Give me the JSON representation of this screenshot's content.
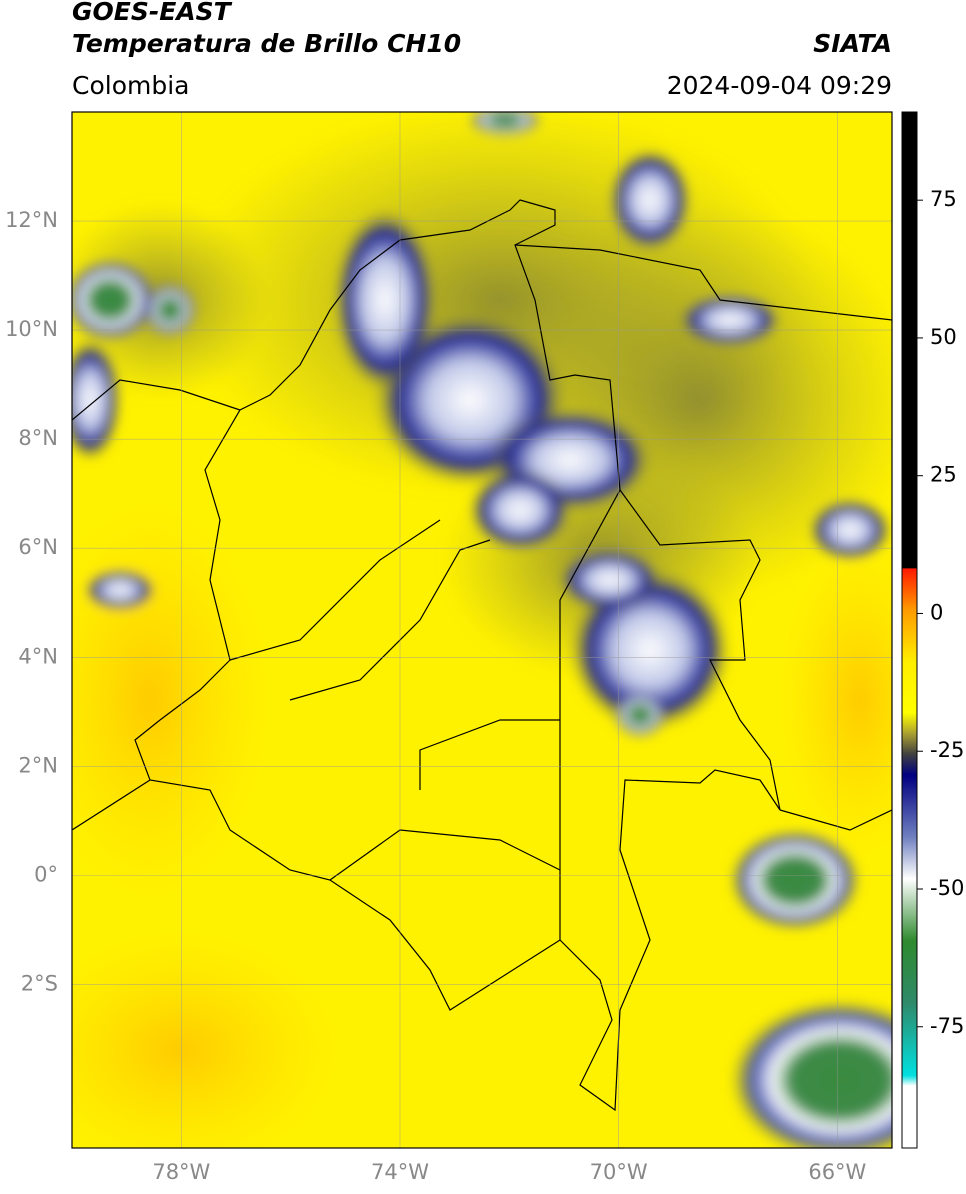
{
  "header": {
    "title": "GOES-EAST",
    "subtitle": "Temperatura de Brillo CH10",
    "region": "Colombia",
    "source": "SIATA",
    "datetime": "2024-09-04 09:29"
  },
  "map": {
    "lon_lim": [
      -80,
      -65
    ],
    "lat_lim": [
      -5,
      14
    ],
    "lat_ticks": [
      {
        "value": 12,
        "label": "12°N"
      },
      {
        "value": 10,
        "label": "10°N"
      },
      {
        "value": 8,
        "label": "8°N"
      },
      {
        "value": 6,
        "label": "6°N"
      },
      {
        "value": 4,
        "label": "4°N"
      },
      {
        "value": 2,
        "label": "2°N"
      },
      {
        "value": 0,
        "label": "0°"
      },
      {
        "value": -2,
        "label": "2°S"
      }
    ],
    "lon_ticks": [
      {
        "value": -78,
        "label": "78°W"
      },
      {
        "value": -74,
        "label": "74°W"
      },
      {
        "value": -70,
        "label": "70°W"
      },
      {
        "value": -66,
        "label": "66°W"
      }
    ]
  },
  "colorbar": {
    "lim": [
      -97,
      91
    ],
    "ticks": [
      75,
      50,
      25,
      0,
      -25,
      -50,
      -75
    ]
  }
}
